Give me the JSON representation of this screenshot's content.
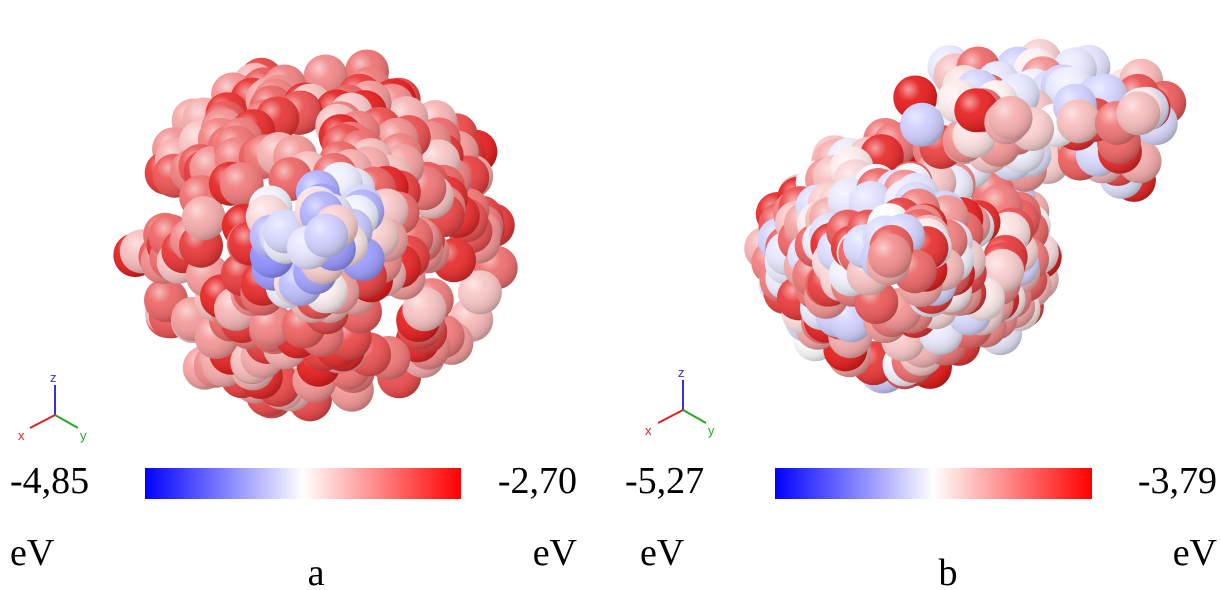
{
  "panels": [
    {
      "label": "a",
      "min_label": "-4,85",
      "max_label": "-2,70",
      "unit": "eV",
      "axes": {
        "x": "x",
        "y": "y",
        "z": "z"
      }
    },
    {
      "label": "b",
      "min_label": "-5,27",
      "max_label": "-3,79",
      "unit": "eV",
      "axes": {
        "x": "x",
        "y": "y",
        "z": "z"
      }
    }
  ]
}
